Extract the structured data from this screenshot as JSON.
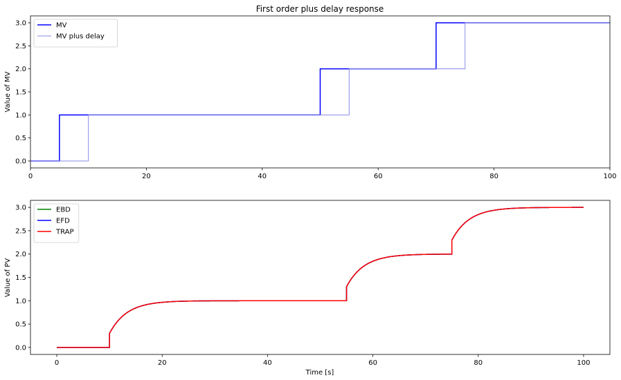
{
  "chart_data": [
    {
      "type": "line",
      "title": "First order plus delay response",
      "xlabel": "",
      "ylabel": "Value of MV",
      "xlim": [
        0,
        100
      ],
      "ylim": [
        -0.15,
        3.15
      ],
      "xticks": [
        0,
        20,
        40,
        60,
        80,
        100
      ],
      "xtick_labels": [
        "0",
        "20",
        "40",
        "60",
        "80",
        "100"
      ],
      "yticks": [
        0.0,
        0.5,
        1.0,
        1.5,
        2.0,
        2.5,
        3.0
      ],
      "ytick_labels": [
        "0.0",
        "0.5",
        "1.0",
        "1.5",
        "2.0",
        "2.5",
        "3.0"
      ],
      "legend": "top-left",
      "series": [
        {
          "name": "MV",
          "color": "#0000ff",
          "step": true,
          "x": [
            0,
            5,
            5,
            50,
            50,
            70,
            70,
            100
          ],
          "y": [
            0,
            0,
            1,
            1,
            2,
            2,
            3,
            3
          ]
        },
        {
          "name": "MV plus delay",
          "color": "#8a8ae6",
          "step": true,
          "x": [
            0,
            10,
            10,
            55,
            55,
            75,
            75,
            100
          ],
          "y": [
            0,
            0,
            1,
            1,
            2,
            2,
            3,
            3
          ]
        }
      ]
    },
    {
      "type": "line",
      "title": "",
      "xlabel": "Time [s]",
      "ylabel": "Value of PV",
      "xlim": [
        -5,
        105
      ],
      "ylim": [
        -0.15,
        3.15
      ],
      "xticks": [
        0,
        20,
        40,
        60,
        80,
        100
      ],
      "xtick_labels": [
        "0",
        "20",
        "40",
        "60",
        "80",
        "100"
      ],
      "yticks": [
        0.0,
        0.5,
        1.0,
        1.5,
        2.0,
        2.5,
        3.0
      ],
      "ytick_labels": [
        "0.0",
        "0.5",
        "1.0",
        "1.5",
        "2.0",
        "2.5",
        "3.0"
      ],
      "legend": "top-left",
      "series": [
        {
          "name": "EBD",
          "color": "#008000",
          "model": "fopdt"
        },
        {
          "name": "EFD",
          "color": "#0000ff",
          "model": "fopdt"
        },
        {
          "name": "TRAP",
          "color": "#ff0000",
          "model": "fopdt"
        }
      ],
      "response": {
        "input_delay": 5,
        "steps": [
          [
            5,
            1
          ],
          [
            50,
            2
          ],
          [
            70,
            3
          ]
        ],
        "lead_gain": 0.3,
        "lag_time_constant": 3.3,
        "t_end": 100
      }
    }
  ]
}
